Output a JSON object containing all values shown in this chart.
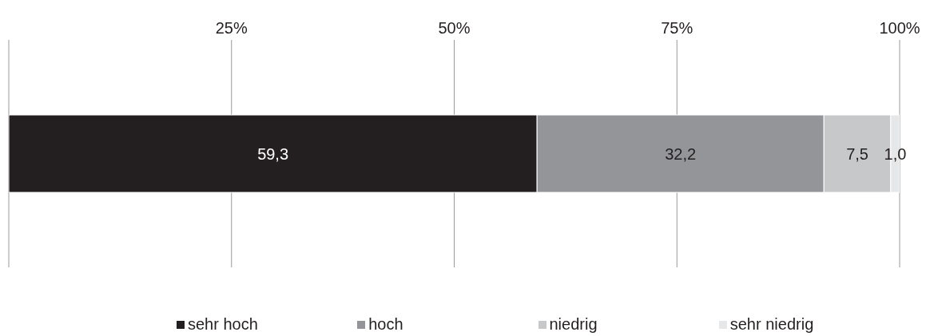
{
  "chart_data": {
    "type": "bar",
    "orientation": "horizontal",
    "stacked": true,
    "categories": [
      null
    ],
    "series": [
      {
        "name": "sehr hoch",
        "color": "#231f20",
        "values": [
          59.3
        ],
        "value_labels": [
          "59,3"
        ]
      },
      {
        "name": "hoch",
        "color": "#939598",
        "values": [
          32.2
        ],
        "value_labels": [
          "32,2"
        ]
      },
      {
        "name": "niedrig",
        "color": "#c7c8ca",
        "values": [
          7.5
        ],
        "value_labels": [
          "7,5"
        ]
      },
      {
        "name": "sehr niedrig",
        "color": "#e6e7e8",
        "values": [
          1.0
        ],
        "value_labels": [
          "1,0"
        ]
      }
    ],
    "xlim": [
      0,
      100
    ],
    "xticks": [
      {
        "value": 0,
        "label": null
      },
      {
        "value": 25,
        "label": "25%"
      },
      {
        "value": 50,
        "label": "50%"
      },
      {
        "value": 75,
        "label": "75%"
      },
      {
        "value": 100,
        "label": "100%"
      }
    ],
    "grid": "x",
    "legend": "bottom",
    "tick_labels": "x"
  }
}
